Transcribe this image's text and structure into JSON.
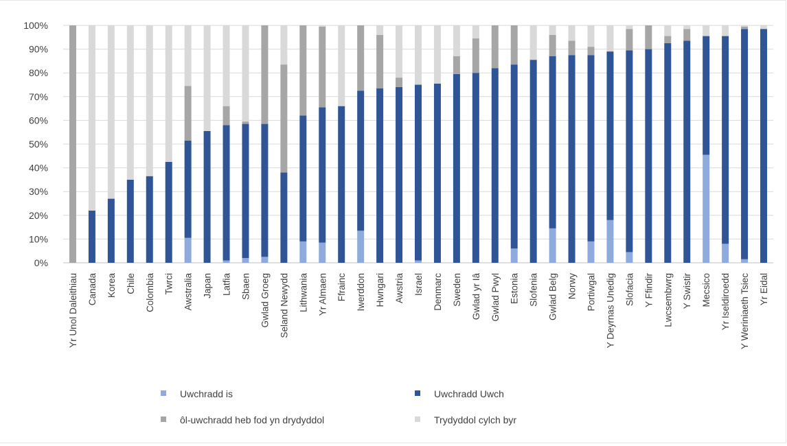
{
  "chart_data": {
    "type": "bar",
    "stacked": true,
    "ylim": [
      0,
      100
    ],
    "yticks": [
      "0%",
      "10%",
      "20%",
      "30%",
      "40%",
      "50%",
      "60%",
      "70%",
      "80%",
      "90%",
      "100%"
    ],
    "grid": true,
    "legend_position": "bottom",
    "categories": [
      "Yr Unol Daleithiau",
      "Canada",
      "Korea",
      "Chile",
      "Colombia",
      "Twrci",
      "Awstralia",
      "Japan",
      "Latfia",
      "Sbaen",
      "Gwlad Groeg",
      "Seland Newydd",
      "Lithwania",
      "Yr Almaen",
      "Ffrainc",
      "Iwerddon",
      "Hwngari",
      "Awstria",
      "Israel",
      "Denmarc",
      "Sweden",
      "Gwlad yr Iâ",
      "Gwlad Pwyl",
      "Estonia",
      "Slofenia",
      "Gwlad Belg",
      "Norwy",
      "Portiwgal",
      "Y Deyrnas Unedig",
      "Slofacia",
      "Y Ffindir",
      "Lwcsembwrg",
      "Y Swistir",
      "Mecsico",
      "Yr Iseldiroedd",
      "Y Weriniaeth Tsiec",
      "Yr Eidal"
    ],
    "series": [
      {
        "name": "Uwchradd is",
        "color": "#8faadc",
        "values": [
          0,
          0,
          0,
          0,
          0,
          0,
          10.5,
          0,
          1,
          2,
          2.5,
          0,
          9,
          8.5,
          0,
          13.5,
          0,
          0,
          1,
          0,
          0,
          0,
          0,
          6,
          0,
          14.5,
          0,
          9,
          18,
          4.5,
          0,
          0,
          0,
          45.5,
          8,
          1.5,
          0
        ]
      },
      {
        "name": "Uwchradd Uwch",
        "color": "#2f5597",
        "values": [
          0,
          22,
          27,
          35,
          36.5,
          42.5,
          41,
          55.5,
          57,
          56.5,
          56,
          38,
          53,
          57,
          66,
          59,
          73.5,
          74,
          74,
          75.5,
          79.5,
          80,
          82,
          77.5,
          85.5,
          72.5,
          87.5,
          78.5,
          71,
          85,
          90,
          92.5,
          93.5,
          50,
          87.5,
          97,
          98.5
        ]
      },
      {
        "name": "ôl-uwchradd heb fod yn drydyddol",
        "color": "#a6a6a6",
        "values": [
          100,
          0,
          0,
          0,
          0,
          0,
          23,
          0,
          8,
          1,
          41.5,
          45.5,
          38,
          34,
          0,
          27.5,
          22.5,
          4,
          0,
          0,
          7.5,
          14.5,
          18,
          16.5,
          0,
          9,
          6,
          3.5,
          0,
          9,
          10,
          3,
          5,
          0,
          0,
          1,
          0
        ]
      },
      {
        "name": "Trydyddol cylch byr",
        "color": "#d9d9d9",
        "values": [
          0,
          78,
          73,
          65,
          63.5,
          57.5,
          25.5,
          44.5,
          34,
          40.5,
          0,
          16.5,
          0,
          0.5,
          34,
          0,
          4,
          22,
          25,
          24.5,
          13,
          5.5,
          0,
          0,
          14.5,
          4,
          6.5,
          9,
          11,
          1.5,
          0,
          4.5,
          1.5,
          4.5,
          4.5,
          0.5,
          1.5
        ]
      }
    ]
  }
}
